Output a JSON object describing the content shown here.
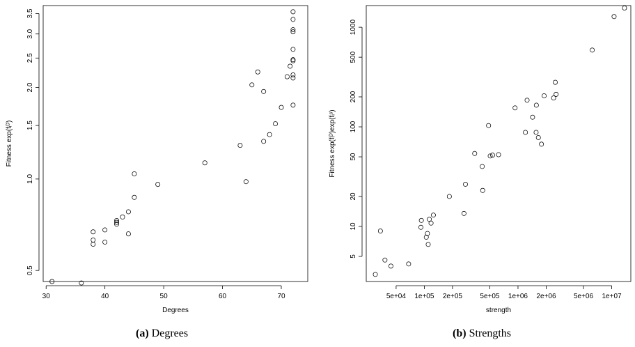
{
  "captions": [
    {
      "tag": "(a)",
      "text": "Degrees"
    },
    {
      "tag": "(b)",
      "text": "Strengths"
    }
  ],
  "chart_data": [
    {
      "type": "scatter",
      "title": "",
      "xlabel": "Degrees",
      "ylabel": "Fitness exp(fᵢᴰ)",
      "x_scale": "linear",
      "y_scale": "log",
      "xlim": [
        29.5,
        74.5
      ],
      "ylim": [
        0.46,
        3.72
      ],
      "x_ticks": [
        30,
        40,
        50,
        60,
        70
      ],
      "y_ticks": [
        0.5,
        1.0,
        1.5,
        2.0,
        2.5,
        3.0,
        3.5
      ],
      "y_tick_labels": [
        "0.5",
        "1.0",
        "1.5",
        "2.0",
        "2.5",
        "3.0",
        "3.5"
      ],
      "points": [
        [
          31,
          0.46
        ],
        [
          36,
          0.455
        ],
        [
          38,
          0.63
        ],
        [
          38,
          0.61
        ],
        [
          38,
          0.67
        ],
        [
          40,
          0.62
        ],
        [
          40,
          0.68
        ],
        [
          42,
          0.71
        ],
        [
          42,
          0.72
        ],
        [
          42,
          0.73
        ],
        [
          43,
          0.75
        ],
        [
          44,
          0.66
        ],
        [
          44,
          0.78
        ],
        [
          45,
          0.87
        ],
        [
          45,
          1.04
        ],
        [
          49,
          0.96
        ],
        [
          57,
          1.13
        ],
        [
          63,
          1.29
        ],
        [
          64,
          0.98
        ],
        [
          65,
          2.04
        ],
        [
          66,
          2.25
        ],
        [
          67,
          1.33
        ],
        [
          67,
          1.94
        ],
        [
          68,
          1.4
        ],
        [
          69,
          1.52
        ],
        [
          70,
          1.72
        ],
        [
          71,
          2.17
        ],
        [
          71.5,
          2.35
        ],
        [
          72,
          1.75
        ],
        [
          72,
          2.15
        ],
        [
          72,
          2.2
        ],
        [
          72,
          2.45
        ],
        [
          72,
          2.47
        ],
        [
          72,
          2.67
        ],
        [
          72,
          3.05
        ],
        [
          72,
          3.1
        ],
        [
          72,
          3.35
        ],
        [
          72,
          3.55
        ]
      ]
    },
    {
      "type": "scatter",
      "title": "",
      "xlabel": "strength",
      "ylabel": "Fitness exp(fᵢᴰ)exp(fᵢˢ)",
      "x_scale": "log",
      "y_scale": "log",
      "xlim": [
        24000,
        16000000
      ],
      "ylim": [
        2.8,
        1650
      ],
      "x_ticks": [
        50000,
        100000,
        200000,
        500000,
        1000000,
        2000000,
        5000000,
        10000000
      ],
      "x_tick_labels": [
        "5e+04",
        "1e+05",
        "2e+05",
        "5e+05",
        "1e+06",
        "2e+06",
        "5e+06",
        "1e+07"
      ],
      "y_ticks": [
        5,
        10,
        20,
        50,
        100,
        200,
        500,
        1000
      ],
      "y_tick_labels": [
        "5",
        "10",
        "20",
        "50",
        "100",
        "200",
        "500",
        "1000"
      ],
      "points": [
        [
          30000,
          3.3
        ],
        [
          34000,
          9.0
        ],
        [
          38000,
          4.6
        ],
        [
          44000,
          4.0
        ],
        [
          68000,
          4.2
        ],
        [
          92000,
          9.8
        ],
        [
          93000,
          11.5
        ],
        [
          105000,
          7.8
        ],
        [
          108000,
          8.5
        ],
        [
          110000,
          6.6
        ],
        [
          113000,
          11.8
        ],
        [
          118000,
          10.8
        ],
        [
          125000,
          13.0
        ],
        [
          185000,
          20.0
        ],
        [
          265000,
          13.5
        ],
        [
          275000,
          26.5
        ],
        [
          345000,
          54.0
        ],
        [
          415000,
          40.0
        ],
        [
          420000,
          23.0
        ],
        [
          485000,
          103.0
        ],
        [
          505000,
          51.0
        ],
        [
          535000,
          52.0
        ],
        [
          620000,
          52.5
        ],
        [
          930000,
          155.0
        ],
        [
          1200000,
          88.0
        ],
        [
          1250000,
          185.0
        ],
        [
          1430000,
          125.0
        ],
        [
          1560000,
          88.0
        ],
        [
          1570000,
          165.0
        ],
        [
          1650000,
          78.0
        ],
        [
          1780000,
          67.0
        ],
        [
          1900000,
          205.0
        ],
        [
          2400000,
          195.0
        ],
        [
          2500000,
          280.0
        ],
        [
          2550000,
          212.0
        ],
        [
          6200000,
          590.0
        ],
        [
          10600000,
          1280.0
        ],
        [
          13700000,
          1560.0
        ]
      ]
    }
  ]
}
